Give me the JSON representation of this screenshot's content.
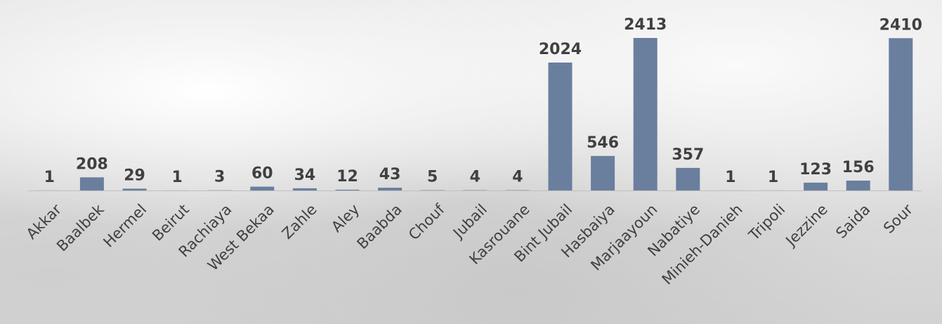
{
  "chart_data": {
    "type": "bar",
    "title": "",
    "xlabel": "",
    "ylabel": "",
    "categories": [
      "Akkar",
      "Baalbek",
      "Hermel",
      "Beirut",
      "Rachiaya",
      "West Bekaa",
      "Zahle",
      "Aley",
      "Baabda",
      "Chouf",
      "Jubail",
      "Kasrouane",
      "Bint Jubail",
      "Hasbaiya",
      "Marjaayoun",
      "Nabatiye",
      "Minieh-Danieh",
      "Tripoli",
      "Jezzine",
      "Saida",
      "Sour"
    ],
    "values": [
      1,
      208,
      29,
      1,
      3,
      60,
      34,
      12,
      43,
      5,
      4,
      4,
      2024,
      546,
      2413,
      357,
      1,
      1,
      123,
      156,
      2410
    ],
    "ylim": [
      0,
      2413
    ],
    "grid": false,
    "legend": "none",
    "data_labels": true,
    "bar_color": "#6a7f9e",
    "axis_color": "#bfbfbf",
    "text_color": "#404040"
  }
}
